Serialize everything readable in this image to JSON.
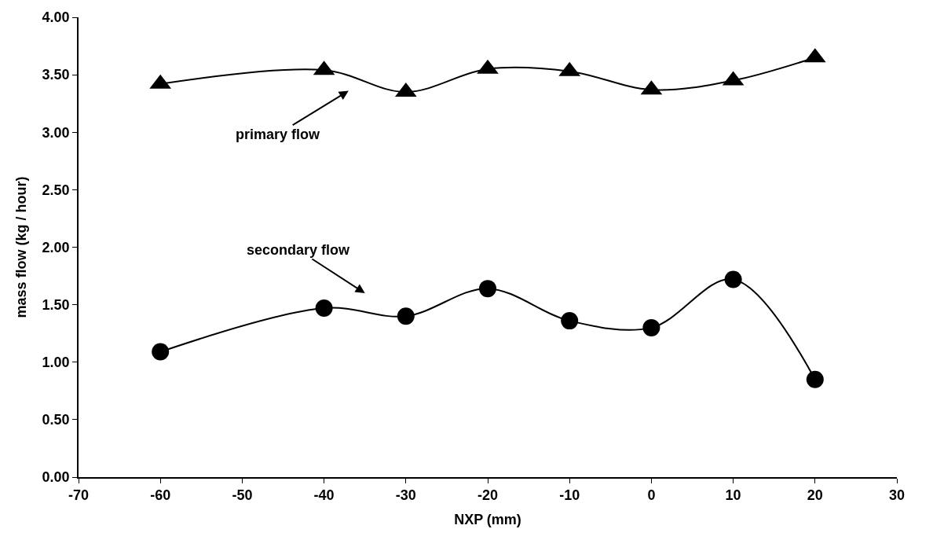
{
  "chart_data": {
    "type": "line",
    "xlabel": "NXP (mm)",
    "ylabel": "mass flow (kg / hour)",
    "x": [
      -60,
      -40,
      -30,
      -20,
      -10,
      0,
      10,
      20
    ],
    "series": [
      {
        "color": "#000000",
        "marker": "triangle",
        "values": [
          3.42,
          3.54,
          3.35,
          3.55,
          3.53,
          3.37,
          3.45,
          3.65
        ]
      },
      {
        "color": "#000000",
        "marker": "circle",
        "values": [
          1.09,
          1.47,
          1.4,
          1.64,
          1.36,
          1.3,
          1.72,
          0.85
        ]
      }
    ],
    "xlim": [
      -70,
      30
    ],
    "xticks": [
      -70,
      -60,
      -50,
      -40,
      -30,
      -20,
      -10,
      0,
      10,
      20,
      30
    ],
    "ylim": [
      0,
      4
    ],
    "yticks": [
      {
        "value": 0,
        "label": "0.00"
      },
      {
        "value": 0.5,
        "label": "0.50"
      },
      {
        "value": 1,
        "label": "1.00"
      },
      {
        "value": 1.5,
        "label": "1.50"
      },
      {
        "value": 2,
        "label": "2.00"
      },
      {
        "value": 2.5,
        "label": "2.50"
      },
      {
        "value": 3,
        "label": "3.00"
      },
      {
        "value": 3.5,
        "label": "3.50"
      },
      {
        "value": 4,
        "label": "4.00"
      }
    ],
    "annotations": [
      "primary flow",
      "secondary flow"
    ]
  }
}
